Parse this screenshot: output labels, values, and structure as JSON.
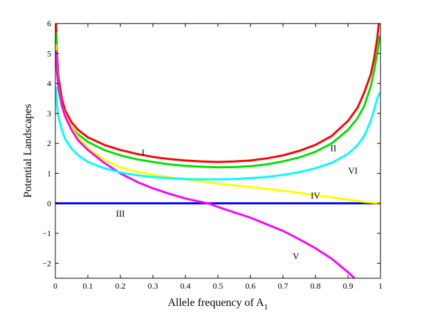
{
  "chart_data": {
    "type": "line",
    "title": "",
    "xlabel": "Allele frequency of A",
    "xlabel_subscript": "1",
    "ylabel": "Potential Landscapes",
    "xlim": [
      0,
      1
    ],
    "ylim": [
      -2.5,
      6
    ],
    "x_ticks": [
      "0",
      "0.1",
      "0.2",
      "0.3",
      "0.4",
      "0.5",
      "0.6",
      "0.7",
      "0.8",
      "0.9",
      "1"
    ],
    "y_ticks": [
      "−2",
      "−1",
      "0",
      "1",
      "2",
      "3",
      "4",
      "5",
      "6"
    ],
    "grid": false,
    "legend": "none",
    "series": [
      {
        "label": "I",
        "color": "#ff0000",
        "label_at": [
          0.27,
          1.7
        ],
        "points": [
          [
            0.002,
            6.0
          ],
          [
            0.005,
            5.0
          ],
          [
            0.01,
            4.2
          ],
          [
            0.02,
            3.5
          ],
          [
            0.03,
            3.1
          ],
          [
            0.05,
            2.7
          ],
          [
            0.07,
            2.45
          ],
          [
            0.1,
            2.2
          ],
          [
            0.15,
            1.95
          ],
          [
            0.2,
            1.78
          ],
          [
            0.25,
            1.65
          ],
          [
            0.3,
            1.55
          ],
          [
            0.35,
            1.48
          ],
          [
            0.4,
            1.43
          ],
          [
            0.45,
            1.4
          ],
          [
            0.5,
            1.38
          ],
          [
            0.55,
            1.4
          ],
          [
            0.6,
            1.43
          ],
          [
            0.65,
            1.5
          ],
          [
            0.7,
            1.6
          ],
          [
            0.75,
            1.75
          ],
          [
            0.8,
            1.95
          ],
          [
            0.85,
            2.25
          ],
          [
            0.9,
            2.75
          ],
          [
            0.93,
            3.2
          ],
          [
            0.95,
            3.7
          ],
          [
            0.97,
            4.3
          ],
          [
            0.98,
            4.8
          ],
          [
            0.99,
            5.5
          ],
          [
            0.995,
            6.0
          ]
        ]
      },
      {
        "label": "II",
        "color": "#00e000",
        "label_at": [
          0.855,
          1.85
        ],
        "points": [
          [
            0.002,
            5.7
          ],
          [
            0.005,
            4.7
          ],
          [
            0.01,
            3.9
          ],
          [
            0.02,
            3.3
          ],
          [
            0.03,
            2.9
          ],
          [
            0.05,
            2.55
          ],
          [
            0.07,
            2.3
          ],
          [
            0.1,
            2.05
          ],
          [
            0.15,
            1.78
          ],
          [
            0.2,
            1.6
          ],
          [
            0.25,
            1.47
          ],
          [
            0.3,
            1.38
          ],
          [
            0.35,
            1.3
          ],
          [
            0.4,
            1.25
          ],
          [
            0.45,
            1.22
          ],
          [
            0.5,
            1.2
          ],
          [
            0.55,
            1.21
          ],
          [
            0.6,
            1.24
          ],
          [
            0.65,
            1.3
          ],
          [
            0.7,
            1.4
          ],
          [
            0.75,
            1.53
          ],
          [
            0.8,
            1.72
          ],
          [
            0.85,
            2.0
          ],
          [
            0.9,
            2.45
          ],
          [
            0.93,
            2.85
          ],
          [
            0.95,
            3.25
          ],
          [
            0.97,
            3.9
          ],
          [
            0.98,
            4.4
          ],
          [
            0.99,
            5.0
          ],
          [
            0.998,
            5.6
          ]
        ]
      },
      {
        "label": "III",
        "color": "#0000ff",
        "label_at": [
          0.2,
          -0.33
        ],
        "points": [
          [
            0,
            0
          ],
          [
            1,
            0
          ]
        ]
      },
      {
        "label": "IV",
        "color": "#ffff00",
        "label_at": [
          0.8,
          0.27
        ],
        "points": [
          [
            0.002,
            5.3
          ],
          [
            0.005,
            4.5
          ],
          [
            0.01,
            3.8
          ],
          [
            0.02,
            3.25
          ],
          [
            0.03,
            2.95
          ],
          [
            0.05,
            2.55
          ],
          [
            0.07,
            2.2
          ],
          [
            0.1,
            1.85
          ],
          [
            0.15,
            1.45
          ],
          [
            0.2,
            1.2
          ],
          [
            0.25,
            1.05
          ],
          [
            0.3,
            0.95
          ],
          [
            0.35,
            0.87
          ],
          [
            0.4,
            0.8
          ],
          [
            0.45,
            0.73
          ],
          [
            0.5,
            0.66
          ],
          [
            0.55,
            0.6
          ],
          [
            0.6,
            0.54
          ],
          [
            0.65,
            0.48
          ],
          [
            0.7,
            0.42
          ],
          [
            0.75,
            0.35
          ],
          [
            0.8,
            0.27
          ],
          [
            0.85,
            0.2
          ],
          [
            0.9,
            0.12
          ],
          [
            0.95,
            0.05
          ],
          [
            1.0,
            0.0
          ]
        ]
      },
      {
        "label": "V",
        "color": "#ff00ff",
        "label_at": [
          0.74,
          -1.75
        ],
        "points": [
          [
            0.002,
            5.1
          ],
          [
            0.005,
            4.4
          ],
          [
            0.01,
            3.8
          ],
          [
            0.02,
            3.25
          ],
          [
            0.03,
            2.9
          ],
          [
            0.05,
            2.45
          ],
          [
            0.07,
            2.1
          ],
          [
            0.1,
            1.78
          ],
          [
            0.15,
            1.35
          ],
          [
            0.2,
            1.0
          ],
          [
            0.25,
            0.72
          ],
          [
            0.3,
            0.5
          ],
          [
            0.35,
            0.32
          ],
          [
            0.4,
            0.16
          ],
          [
            0.45,
            0.04
          ],
          [
            0.47,
            0.0
          ],
          [
            0.5,
            -0.12
          ],
          [
            0.55,
            -0.3
          ],
          [
            0.6,
            -0.48
          ],
          [
            0.65,
            -0.7
          ],
          [
            0.7,
            -0.92
          ],
          [
            0.75,
            -1.2
          ],
          [
            0.8,
            -1.5
          ],
          [
            0.85,
            -1.85
          ],
          [
            0.9,
            -2.3
          ],
          [
            0.92,
            -2.5
          ]
        ]
      },
      {
        "label": "VI",
        "color": "#00ffff",
        "label_at": [
          0.915,
          1.1
        ],
        "points": [
          [
            0.002,
            3.9
          ],
          [
            0.005,
            3.3
          ],
          [
            0.01,
            2.85
          ],
          [
            0.02,
            2.45
          ],
          [
            0.03,
            2.15
          ],
          [
            0.05,
            1.82
          ],
          [
            0.07,
            1.6
          ],
          [
            0.1,
            1.38
          ],
          [
            0.15,
            1.17
          ],
          [
            0.2,
            1.03
          ],
          [
            0.25,
            0.94
          ],
          [
            0.3,
            0.88
          ],
          [
            0.35,
            0.84
          ],
          [
            0.4,
            0.81
          ],
          [
            0.45,
            0.8
          ],
          [
            0.5,
            0.8
          ],
          [
            0.55,
            0.81
          ],
          [
            0.6,
            0.84
          ],
          [
            0.65,
            0.88
          ],
          [
            0.7,
            0.95
          ],
          [
            0.75,
            1.04
          ],
          [
            0.8,
            1.17
          ],
          [
            0.85,
            1.35
          ],
          [
            0.9,
            1.65
          ],
          [
            0.93,
            1.95
          ],
          [
            0.95,
            2.25
          ],
          [
            0.97,
            2.75
          ],
          [
            0.98,
            3.1
          ],
          [
            0.99,
            3.5
          ],
          [
            0.998,
            3.7
          ]
        ]
      }
    ]
  }
}
